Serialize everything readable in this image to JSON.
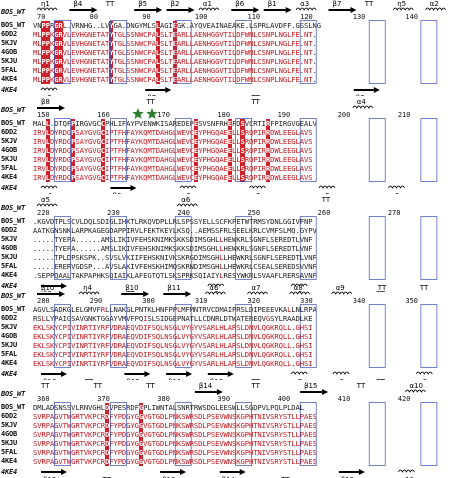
{
  "figure": {
    "sequence_names": [
      "BOS_WT",
      "6DD2",
      "5KJV",
      "4GOB",
      "5KJU",
      "5FAL",
      "4KE4",
      "4KE4"
    ],
    "blocks": [
      {
        "top_name": "BOS_WT",
        "top_labels": [
          "η1",
          "β4",
          "TT",
          "β5",
          "β2",
          "α1",
          "β6",
          "β1",
          "α3",
          "β7",
          "TT",
          "η5",
          "α2"
        ],
        "numbers": [
          "70",
          "80",
          "90",
          "100",
          "110",
          "120",
          "130",
          "140"
        ],
        "rows": [
          "VNPPRGRL.VRNHG..LVYGA.DNGYMLSLAGIEGK.AYQVEAINAEAKE.LSPRLAVDFF.GSSLNG",
          "MLPPKGRVLEVHGNETATYTGLSSNWCPALSLTEARLLAENHGGVTILDFWNLCSNPLNGLFE.NT.",
          "MLPPKGRVLEVHGNETATYTGLSSNWCPALSLTEARLLAENHGGVTILDFWNLCSNPLNGLFE.NT.",
          "MLPPKGRVLEVHGNETATYTGLSSNWCPALSLTEARLLAENHGGVTILDFWNLCSNPLNGLFE.NT.",
          "MLPPKGRVLEVHGNETATYTGLSSNWCPALSLTEARLLAENHGGVTILDFWNLCSNPLNGLFE.NT.",
          "MLPPKGRVLEVHGNETATYTGLSSNWCPALSLTEARLLAENHGGVTILDFWNLCSNPLNGLFE.NT.",
          "MLPPKGRVLEVHGNETATYTGLSSNWCPALSLTEARLLAENHGGVTILDFWNLCSNPLNGLFE.NT."
        ],
        "bottom_name": "4KE4",
        "bottom_labels": [
          "η2",
          "β7",
          "TT",
          "β3"
        ]
      },
      {
        "top_name": "BOS_WT",
        "top_labels": [
          "β8",
          "TT",
          "TT",
          "α4"
        ],
        "numbers": [
          "150",
          "160",
          "170",
          "180",
          "190",
          "200",
          "210"
        ],
        "rows": [
          "MALL.DTQFPIRGVGCCPHLIFAYPVENWKISAREDEPESVSNFRHEFDSVCRTIRFPIRGVGEALV",
          "IRVLDYRDGPSAYGVGCIPTFHFAYKQMTDAHGLWEVCEYPHGQAEELLSRQPIRRDWLEEGLAVS",
          "IRVLDYRDGPSAYGVGCIPTFHFAYKQMTDAHGLWEVCEYPHGQAEELLSRQPIRRDWLEEGLAVS",
          "IRVLDYRDGPSAYGVGCIPTFHFAYKQMTDAHGLWEVCEYPHGQAEELLSRQPIRRDWLEEGLAVS",
          "IRVLDYRDGPSAYGVGCIPTFHFAYKQMTDAHGLWEVCEYPHGQAEELLSRQPIRRDWLEEGLAVS",
          "IRVLDYRDGPSAYGVGCIPTFHFAYKQMTDAHGLWEVCEYPHGQAEELLSRQPIRRDWLEEGLAVS",
          "IRVLDYRDGPSAYGVGCIPTFHFAYKQMTDAHGLWEVCEYPHGQAEELLSRQPIRRDWLEEGLAVS"
        ],
        "bottom_name": "4KE4",
        "bottom_labels": [
          "η4",
          "β6",
          "η3",
          "α5",
          "η5",
          "η6"
        ]
      },
      {
        "top_name": "BOS_WT",
        "top_labels": [
          "α5",
          "α6",
          "TT"
        ],
        "numbers": [
          "220",
          "230",
          "240",
          "250",
          "260",
          "270"
        ],
        "rows": [
          ".KGVDTPLSCVLDQLSDIGLIHKTLRKQVDPLLRLSPSSYELLSCFKPETWTRMSYDNLGGIVFNP",
          "AATKGNSNKLARPKAGEGDAPPIRVLFEKTKEYLKSQ..AEMSSFRLSEELKRLCVMFSLMQ.GYPV",
          ".....TYEPA......AMSLIKIVFEHSKNIMKSKKSDIMSGHLLHEWKRLSGNFLSEREDTLVNF",
          ".....TYEPA......AMSLIKIVFEHSKNIMKSKKSDIMSGHLLHEWKRLSGNFLSEREDTLVNF",
          ".....TPLDPSKSPK..SVSLVKIIFEHSKNIVKSKRGDIMSGHLLHEWKRLSGNFLSEREDTLVNF",
          ".....ERERVGDSP...AVSLAKIVFEHSKHIMQSKRNDIMSGHLLHEWKRLCSEALSEREDSVVNF",
          ".SEPPQAALTAKPAPHKSQIAIKLAFEGTQTLSKSPRKSQIAIYLRESYWKRLSVAAFLRERSAVNF"
        ],
        "bottom_name": "4KE4",
        "bottom_labels": [
          "β9",
          "TT",
          "η6",
          "α6",
          "TT"
        ]
      },
      {
        "top_name": "BOS_WT",
        "top_labels": [
          "β10",
          "η4",
          "β10",
          "β11",
          "α6",
          "α7",
          "α8",
          "α9",
          "TT",
          "TT"
        ],
        "numbers": [
          "280",
          "290",
          "300",
          "310",
          "320",
          "330",
          "340",
          "350"
        ],
        "rows": [
          "AGVLSADKGLELGMVFRLLNAKGLPNTKLHNFPPLMFMNTRVCDMAIPRSLDIPEEEVKALLNLRPA",
          "RSLLYPAIGSAVGNKTGGAYVMVFPQISLSIDGEPNATLLCDNRLDTWATEREQVGSYLRAADLKE",
          "EKLSKYCPIVINRTIYRFVDRAEQVDIFSQLNSGLVYGYVSARLHLARSLDNVLQGKRQLL.GHSI",
          "EKLSKYCPIVINRTIYRFVDRAEQVDIFSQLNSGLVYGYVSARLHLARSLDNVLQGKRQLL.GHSI",
          "EKLSKYCPIVINRTIYRFVDRAEQVDIFSQLNSGLVYGYVSARLHLARSLDNVLQGKRQLL.GHSI",
          "EKLSKYCPIVINRTIYRFVDRAEQVDIFSQLNSGLVYGYVSARLHLARSLDNVLQGKRQLL.GHSI",
          "EKLSKYCPIVINRTIYRFVDRAEQVDIFSQLNSGLVYGYVSARLHLARSLDNVLQGKRQLL.GHSI"
        ],
        "bottom_name": "4KE4",
        "bottom_labels": [
          "β10",
          "TT",
          "β12",
          "β11",
          "β13",
          "TT",
          "α7",
          "α8",
          "TT",
          "α9"
        ]
      },
      {
        "top_name": "BOS_WT",
        "top_labels": [
          "TT",
          "TT",
          "TT",
          "β14",
          "TT",
          "β15",
          "TT",
          "α10"
        ],
        "numbers": [
          "360",
          "370",
          "380",
          "390",
          "400",
          "410",
          "420"
        ],
        "rows": [
          "DMLADSNSSVLRNVGHLDVPESRDFGPLIWNTALSNRTRWSDGLEESWLLSGDPVLPQLPLDAL",
          "SVRPAGVTWGRTVKPCRDFYPDGYGGVGTGDLPNKSWRSDLPSEVWNSKGPHTNIVSRYSTLLPAES",
          "SVRPAGVTWGRTVKPCRDFYPDGYGGVGTGDLPNKSWRSDLPSEVWNSKGPHTNIVSRYSTLLPAES",
          "SVRPAGVTWGRTVKPCRDFYPDGYGGVGTGDLPNKSWRSDLPSEVWNSKGPHTNIVSRYSTLLPAES",
          "SVRPAGVTWGRTVKPCRDFYPDGYGGVGTGDLPNKSWRSDLPSEVWNSKGPHTNIVSRYSTLLPAES",
          "SVRPAGVTWGRTVKPCRDFYPDGYGGVGTGDLPNKSWRSDLPSEVWNSKGPHTNIVSRYSTLLPAES",
          "SVRPAGVTWGRTVKPCRDFYPDGYGGVGTGDLPNKSWRSDLPSEVWNSKGPHTNIVSRYSTLLPAES"
        ],
        "bottom_name": "4KE4",
        "bottom_labels": [
          "β12",
          "TT",
          "β13",
          "β14",
          "TT",
          "β15",
          "α10"
        ]
      }
    ]
  }
}
